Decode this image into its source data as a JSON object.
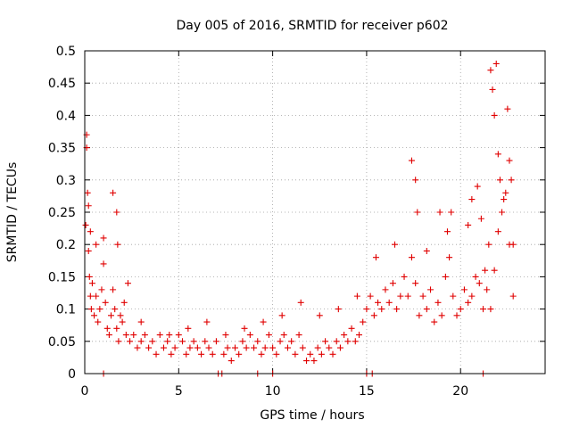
{
  "chart_data": {
    "type": "scatter",
    "title": "Day 005 of 2016, SRMTID for receiver p602",
    "xlabel": "GPS time / hours",
    "ylabel": "SRMTID / TECUs",
    "xlim": [
      0,
      24.5
    ],
    "ylim": [
      0,
      0.5
    ],
    "x_ticks": [
      0,
      5,
      10,
      15,
      20
    ],
    "y_ticks": [
      0,
      0.05,
      0.1,
      0.15,
      0.2,
      0.25,
      0.3,
      0.35,
      0.4,
      0.45,
      0.5
    ],
    "x_tick_labels": [
      "0",
      "5",
      "10",
      "15",
      "20"
    ],
    "y_tick_labels": [
      "0",
      "0.05",
      "0.1",
      "0.15",
      "0.2",
      "0.25",
      "0.3",
      "0.35",
      "0.4",
      "0.45",
      "0.5"
    ],
    "grid": true,
    "marker": "plus",
    "color": "#e00000",
    "series": [
      {
        "name": "SRMTID",
        "x": [
          0.05,
          0.1,
          0.15,
          0.2,
          0.25,
          0.3,
          0.35,
          0.4,
          0.5,
          0.6,
          0.7,
          0.8,
          0.9,
          1.0,
          1.1,
          1.2,
          1.3,
          1.4,
          1.5,
          1.6,
          1.7,
          1.8,
          1.9,
          2.0,
          2.1,
          2.2,
          2.4,
          2.6,
          2.8,
          3.0,
          3.2,
          3.4,
          3.6,
          3.8,
          4.0,
          4.2,
          4.4,
          4.6,
          4.8,
          5.0,
          5.2,
          5.4,
          5.6,
          5.8,
          6.0,
          6.2,
          6.4,
          6.6,
          6.8,
          7.0,
          7.4,
          7.6,
          7.8,
          8.0,
          8.2,
          8.4,
          8.6,
          8.8,
          9.0,
          9.2,
          9.4,
          9.6,
          9.8,
          10.0,
          10.2,
          10.4,
          10.6,
          10.8,
          11.0,
          11.2,
          11.4,
          11.6,
          11.8,
          12.0,
          12.2,
          12.4,
          12.6,
          12.8,
          13.0,
          13.2,
          13.4,
          13.6,
          13.8,
          14.0,
          14.2,
          14.4,
          14.6,
          14.8,
          15.0,
          15.2,
          15.4,
          15.6,
          15.8,
          16.0,
          16.2,
          16.4,
          16.6,
          16.8,
          17.0,
          17.2,
          17.4,
          17.6,
          17.8,
          18.0,
          18.2,
          18.4,
          18.6,
          18.8,
          19.0,
          19.2,
          19.4,
          19.6,
          19.8,
          20.0,
          20.2,
          20.4,
          20.6,
          20.8,
          21.0,
          21.2,
          21.4,
          21.6,
          21.8,
          22.0,
          22.2,
          22.4,
          22.6,
          22.8,
          0.1,
          0.2,
          0.3,
          0.6,
          1.0,
          1.5,
          1.7,
          1.75,
          2.3,
          3.0,
          4.5,
          5.5,
          6.5,
          7.5,
          8.5,
          9.5,
          10.5,
          11.5,
          12.5,
          13.5,
          14.5,
          15.5,
          16.5,
          17.4,
          17.6,
          17.7,
          18.2,
          18.9,
          19.3,
          19.5,
          20.4,
          20.6,
          20.9,
          21.1,
          21.3,
          21.5,
          21.6,
          21.7,
          21.8,
          21.9,
          22.0,
          22.1,
          22.3,
          22.5,
          22.6,
          22.7,
          22.8,
          1.0,
          7.1,
          7.3,
          9.2,
          10.0,
          15.0,
          15.3,
          21.2
        ],
        "y": [
          0.23,
          0.35,
          0.28,
          0.19,
          0.15,
          0.12,
          0.1,
          0.14,
          0.09,
          0.12,
          0.08,
          0.1,
          0.13,
          0.17,
          0.11,
          0.07,
          0.06,
          0.09,
          0.13,
          0.1,
          0.07,
          0.05,
          0.09,
          0.08,
          0.11,
          0.06,
          0.05,
          0.06,
          0.04,
          0.05,
          0.06,
          0.04,
          0.05,
          0.03,
          0.06,
          0.04,
          0.05,
          0.03,
          0.04,
          0.06,
          0.05,
          0.03,
          0.04,
          0.05,
          0.04,
          0.03,
          0.05,
          0.04,
          0.03,
          0.05,
          0.03,
          0.04,
          0.02,
          0.04,
          0.03,
          0.05,
          0.04,
          0.06,
          0.04,
          0.05,
          0.03,
          0.04,
          0.06,
          0.04,
          0.03,
          0.05,
          0.06,
          0.04,
          0.05,
          0.03,
          0.06,
          0.04,
          0.02,
          0.03,
          0.02,
          0.04,
          0.03,
          0.05,
          0.04,
          0.03,
          0.05,
          0.04,
          0.06,
          0.05,
          0.07,
          0.05,
          0.06,
          0.08,
          0.1,
          0.12,
          0.09,
          0.11,
          0.1,
          0.13,
          0.11,
          0.14,
          0.1,
          0.12,
          0.15,
          0.12,
          0.18,
          0.14,
          0.09,
          0.12,
          0.1,
          0.13,
          0.08,
          0.11,
          0.09,
          0.15,
          0.18,
          0.12,
          0.09,
          0.1,
          0.13,
          0.11,
          0.12,
          0.15,
          0.14,
          0.1,
          0.13,
          0.1,
          0.16,
          0.22,
          0.25,
          0.28,
          0.2,
          0.12,
          0.37,
          0.26,
          0.22,
          0.2,
          0.21,
          0.28,
          0.25,
          0.2,
          0.14,
          0.08,
          0.06,
          0.07,
          0.08,
          0.06,
          0.07,
          0.08,
          0.09,
          0.11,
          0.09,
          0.1,
          0.12,
          0.18,
          0.2,
          0.33,
          0.3,
          0.25,
          0.19,
          0.25,
          0.22,
          0.25,
          0.23,
          0.27,
          0.29,
          0.24,
          0.16,
          0.2,
          0.47,
          0.44,
          0.4,
          0.48,
          0.34,
          0.3,
          0.27,
          0.41,
          0.33,
          0.3,
          0.2,
          0.0,
          0.0,
          0.0,
          0.0,
          0.0,
          0.0,
          0.0,
          0.0
        ]
      }
    ]
  }
}
